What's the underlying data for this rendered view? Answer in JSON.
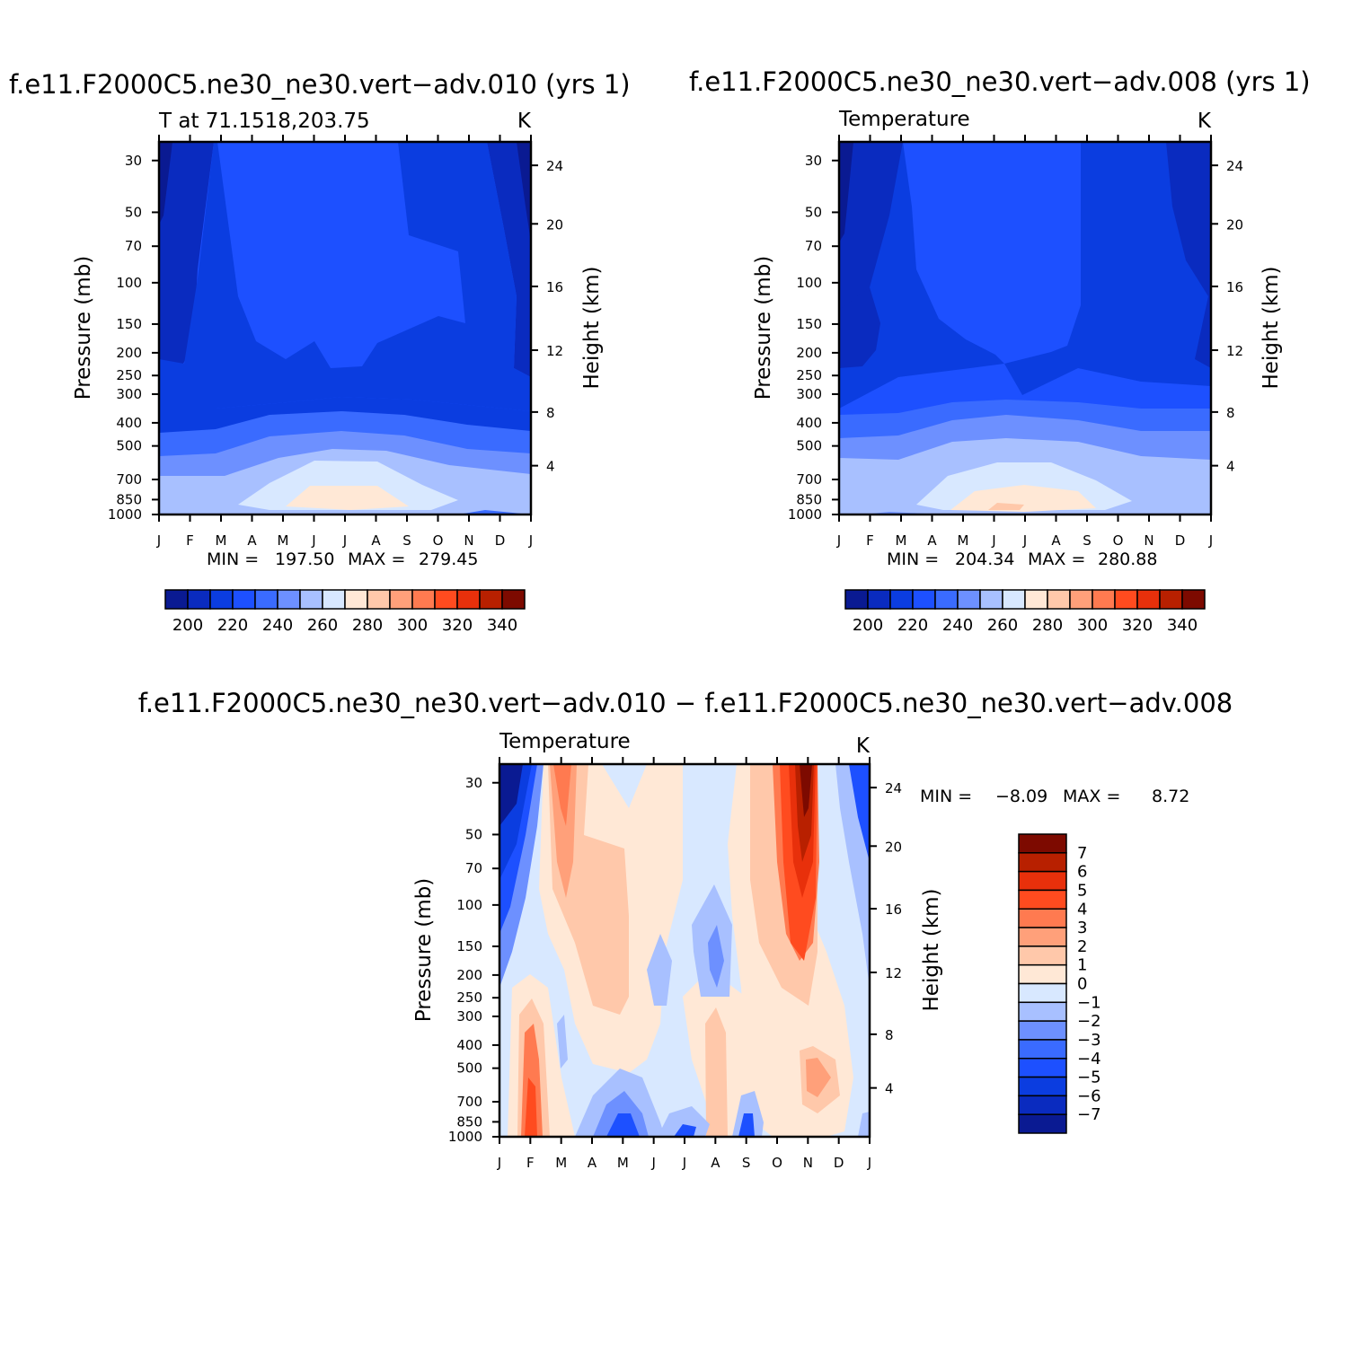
{
  "chart_data": [
    {
      "type": "heatmap",
      "panel": "case-a",
      "title": "f.e11.F2000C5.ne30_ne30.vert−adv.010 (yrs 1)",
      "subtitle_left": "T at 71.1518,203.75",
      "subtitle_right": "K",
      "ylabel": "Pressure (mb)",
      "ylabel_right": "Height (km)",
      "x_ticks": [
        "J",
        "F",
        "M",
        "A",
        "M",
        "J",
        "J",
        "A",
        "S",
        "O",
        "N",
        "D",
        "J"
      ],
      "y_ticks": [
        "30",
        "50",
        "70",
        "100",
        "150",
        "200",
        "250",
        "300",
        "400",
        "500",
        "700",
        "850",
        "1000"
      ],
      "y_ticks_right": [
        "24",
        "20",
        "16",
        "12",
        "8",
        "4"
      ],
      "min_label": "MIN =",
      "min_value": "197.50",
      "max_label": "MAX =",
      "max_value": "279.45",
      "colorbar_labels": [
        "200",
        "220",
        "240",
        "260",
        "280",
        "300",
        "320",
        "340"
      ],
      "level_band_bottoms_top_to_bottom": [
        1000,
        390,
        240,
        150,
        95,
        55,
        15
      ],
      "colors": [
        "#0a1a92",
        "#0a2bbf",
        "#0b3de0",
        "#1d50ff",
        "#3a6bff",
        "#6d90ff",
        "#a8c0ff",
        "#d8e8ff",
        "#ffe8d6",
        "#ffc8aa",
        "#ffa07a",
        "#ff7a50",
        "#ff4b1f",
        "#e8300b",
        "#b82000",
        "#7d0a00"
      ]
    },
    {
      "type": "heatmap",
      "panel": "case-b",
      "title": "f.e11.F2000C5.ne30_ne30.vert−adv.008 (yrs 1)",
      "subtitle_left": "Temperature",
      "subtitle_right": "K",
      "ylabel": "Pressure (mb)",
      "ylabel_right": "Height (km)",
      "x_ticks": [
        "J",
        "F",
        "M",
        "A",
        "M",
        "J",
        "J",
        "A",
        "S",
        "O",
        "N",
        "D",
        "J"
      ],
      "y_ticks": [
        "30",
        "50",
        "70",
        "100",
        "150",
        "200",
        "250",
        "300",
        "400",
        "500",
        "700",
        "850",
        "1000"
      ],
      "y_ticks_right": [
        "24",
        "20",
        "16",
        "12",
        "8",
        "4"
      ],
      "min_label": "MIN =",
      "min_value": "204.34",
      "max_label": "MAX =",
      "max_value": "280.88",
      "colorbar_labels": [
        "200",
        "220",
        "240",
        "260",
        "280",
        "300",
        "320",
        "340"
      ],
      "level_band_bottoms_top_to_bottom": [
        1000,
        400,
        245,
        155,
        98,
        58,
        16
      ],
      "colors": [
        "#0a1a92",
        "#0a2bbf",
        "#0b3de0",
        "#1d50ff",
        "#3a6bff",
        "#6d90ff",
        "#a8c0ff",
        "#d8e8ff",
        "#ffe8d6",
        "#ffc8aa",
        "#ffa07a",
        "#ff7a50",
        "#ff4b1f",
        "#e8300b",
        "#b82000",
        "#7d0a00"
      ]
    },
    {
      "type": "heatmap",
      "panel": "difference",
      "title": "f.e11.F2000C5.ne30_ne30.vert−adv.010 − f.e11.F2000C5.ne30_ne30.vert−adv.008",
      "subtitle_left": "Temperature",
      "subtitle_right": "K",
      "ylabel": "Pressure (mb)",
      "ylabel_right": "Height (km)",
      "x_ticks": [
        "J",
        "F",
        "M",
        "A",
        "M",
        "J",
        "J",
        "A",
        "S",
        "O",
        "N",
        "D",
        "J"
      ],
      "y_ticks": [
        "30",
        "50",
        "70",
        "100",
        "150",
        "200",
        "250",
        "300",
        "400",
        "500",
        "700",
        "850",
        "1000"
      ],
      "y_ticks_right": [
        "24",
        "20",
        "16",
        "12",
        "8",
        "4"
      ],
      "min_label": "MIN =",
      "min_value": "−8.09",
      "max_label": "MAX =",
      "max_value": "8.72",
      "colorbar_labels": [
        "7",
        "6",
        "5",
        "4",
        "3",
        "2",
        "1",
        "0",
        "−1",
        "−2",
        "−3",
        "−4",
        "−5",
        "−6",
        "−7"
      ],
      "colors": [
        "#7d0a00",
        "#b82000",
        "#e8300b",
        "#ff4b1f",
        "#ff7a50",
        "#ffa07a",
        "#ffc8aa",
        "#ffe8d6",
        "#d8e8ff",
        "#a8c0ff",
        "#6d90ff",
        "#3a6bff",
        "#1d50ff",
        "#0b3de0",
        "#0a2bbf",
        "#0a1a92"
      ]
    }
  ]
}
